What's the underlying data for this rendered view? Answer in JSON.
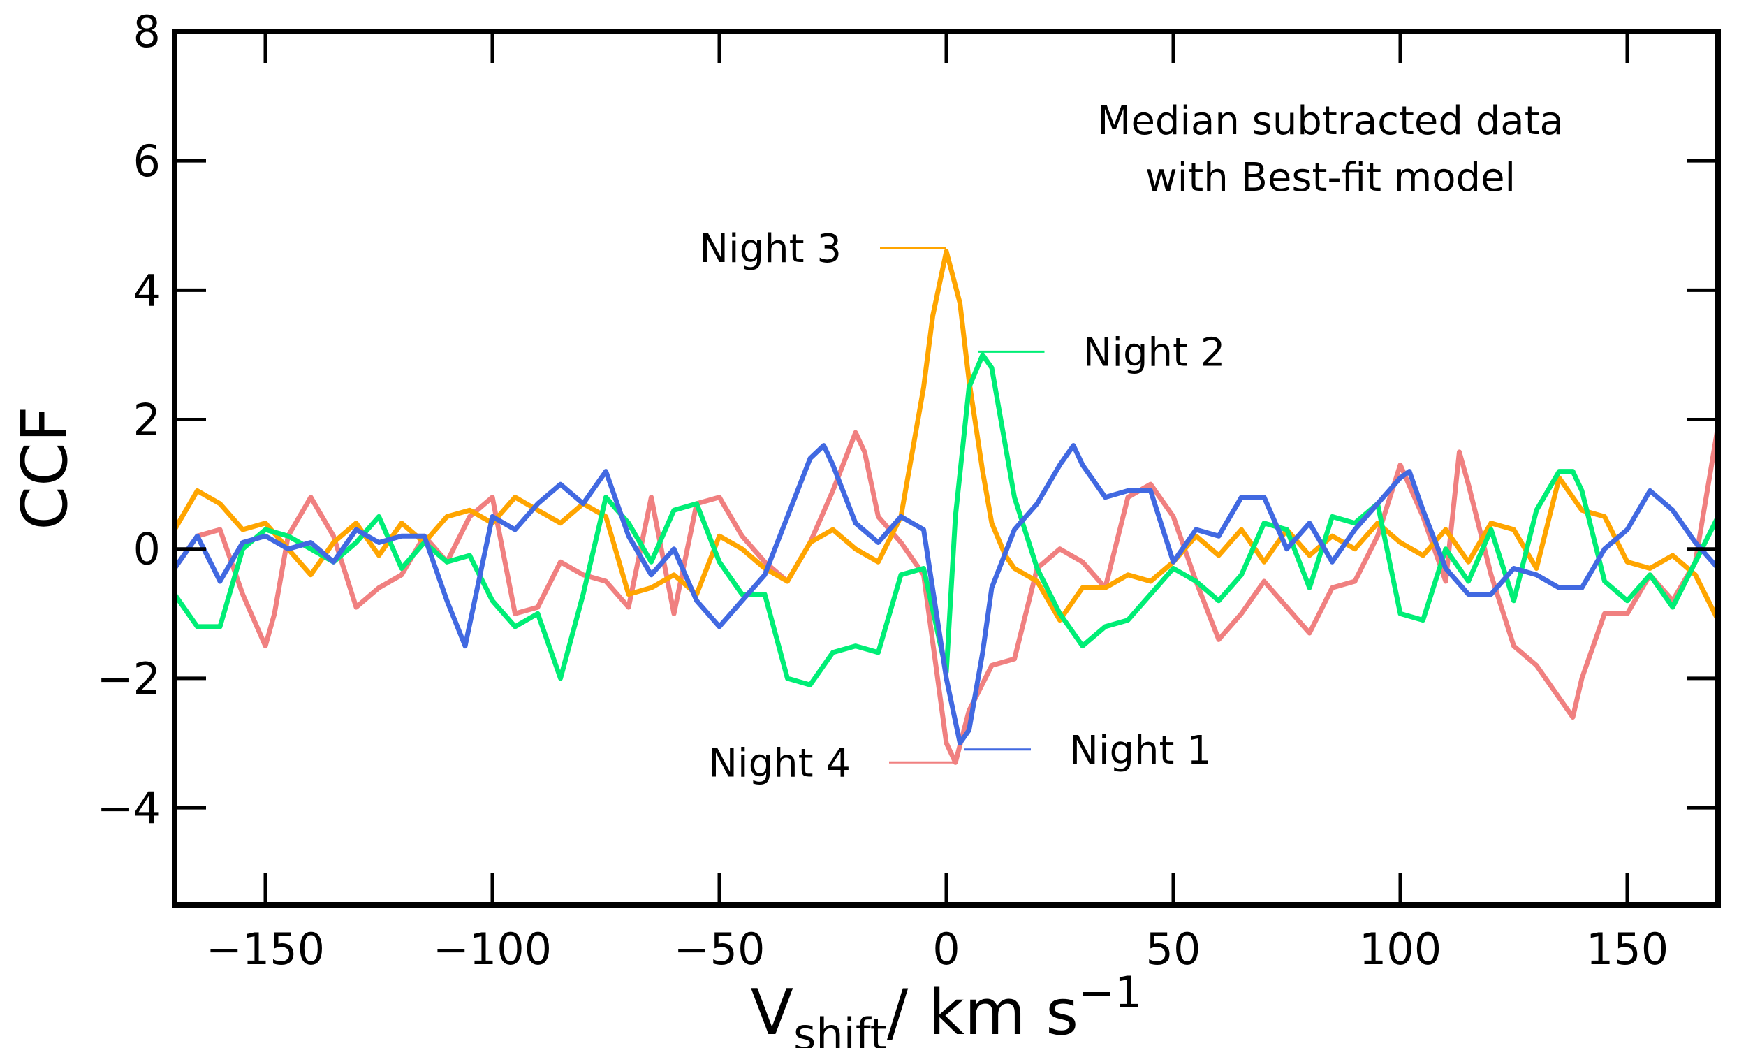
{
  "chart_data": {
    "type": "line",
    "xlabel_main": "V",
    "xlabel_sub": "shift",
    "xlabel_unit": "/ km s",
    "xlabel_sup": "−1",
    "ylabel": "CCF",
    "xlim": [
      -170,
      170
    ],
    "ylim": [
      -5.5,
      8
    ],
    "xticks": [
      -150,
      -100,
      -50,
      0,
      50,
      100,
      150
    ],
    "yticks": [
      -4,
      -2,
      0,
      2,
      4,
      6,
      8
    ],
    "annotation": [
      "Median subtracted data",
      "with Best-fit model"
    ],
    "series": [
      {
        "name": "Night 4",
        "color": "#f08080",
        "x": [
          -170,
          -165,
          -160,
          -155,
          -150,
          -148,
          -145,
          -140,
          -135,
          -130,
          -125,
          -120,
          -115,
          -110,
          -105,
          -100,
          -95,
          -90,
          -85,
          -80,
          -75,
          -70,
          -65,
          -60,
          -55,
          -50,
          -45,
          -40,
          -35,
          -30,
          -25,
          -20,
          -18,
          -15,
          -10,
          -5,
          0,
          2,
          5,
          10,
          15,
          20,
          25,
          30,
          35,
          40,
          45,
          50,
          55,
          60,
          65,
          70,
          75,
          80,
          85,
          90,
          95,
          100,
          105,
          110,
          113,
          115,
          120,
          125,
          130,
          135,
          138,
          140,
          145,
          150,
          155,
          160,
          165,
          170
        ],
        "values": [
          -0.3,
          0.2,
          0.3,
          -0.7,
          -1.5,
          -1.0,
          0.2,
          0.8,
          0.2,
          -0.9,
          -0.6,
          -0.4,
          0.2,
          -0.2,
          0.5,
          0.8,
          -1.0,
          -0.9,
          -0.2,
          -0.4,
          -0.5,
          -0.9,
          0.8,
          -1.0,
          0.7,
          0.8,
          0.2,
          -0.2,
          -0.5,
          0.1,
          0.9,
          1.8,
          1.5,
          0.5,
          0.1,
          -0.4,
          -3.0,
          -3.3,
          -2.5,
          -1.8,
          -1.7,
          -0.3,
          0.0,
          -0.2,
          -0.6,
          0.8,
          1.0,
          0.5,
          -0.5,
          -1.4,
          -1.0,
          -0.5,
          -0.9,
          -1.3,
          -0.6,
          -0.5,
          0.2,
          1.3,
          0.5,
          -0.5,
          1.5,
          1.0,
          -0.4,
          -1.5,
          -1.8,
          -2.3,
          -2.6,
          -2.0,
          -1.0,
          -1.0,
          -0.4,
          -0.8,
          -0.2,
          1.9
        ]
      },
      {
        "name": "Night 3",
        "color": "#ffa500",
        "x": [
          -170,
          -165,
          -160,
          -155,
          -150,
          -145,
          -140,
          -135,
          -130,
          -125,
          -120,
          -115,
          -110,
          -105,
          -100,
          -95,
          -90,
          -85,
          -80,
          -75,
          -70,
          -65,
          -60,
          -55,
          -50,
          -45,
          -40,
          -35,
          -30,
          -25,
          -20,
          -15,
          -10,
          -8,
          -5,
          -3,
          0,
          3,
          5,
          8,
          10,
          13,
          15,
          20,
          25,
          30,
          35,
          40,
          45,
          50,
          55,
          60,
          65,
          70,
          75,
          80,
          85,
          90,
          95,
          100,
          105,
          110,
          115,
          120,
          125,
          130,
          135,
          140,
          145,
          150,
          155,
          160,
          165,
          170
        ],
        "values": [
          0.3,
          0.9,
          0.7,
          0.3,
          0.4,
          0.0,
          -0.4,
          0.1,
          0.4,
          -0.1,
          0.4,
          0.1,
          0.5,
          0.6,
          0.4,
          0.8,
          0.6,
          0.4,
          0.7,
          0.5,
          -0.7,
          -0.6,
          -0.4,
          -0.7,
          0.2,
          0.0,
          -0.3,
          -0.5,
          0.1,
          0.3,
          0.0,
          -0.2,
          0.5,
          1.3,
          2.5,
          3.6,
          4.6,
          3.8,
          2.6,
          1.2,
          0.4,
          -0.1,
          -0.3,
          -0.5,
          -1.1,
          -0.6,
          -0.6,
          -0.4,
          -0.5,
          -0.2,
          0.2,
          -0.1,
          0.3,
          -0.2,
          0.3,
          -0.1,
          0.2,
          0.0,
          0.4,
          0.1,
          -0.1,
          0.3,
          -0.2,
          0.4,
          0.3,
          -0.3,
          1.1,
          0.6,
          0.5,
          -0.2,
          -0.3,
          -0.1,
          -0.4,
          -1.1
        ]
      },
      {
        "name": "Night 2",
        "color": "#00ee76",
        "x": [
          -170,
          -165,
          -160,
          -155,
          -150,
          -145,
          -140,
          -135,
          -130,
          -125,
          -120,
          -115,
          -110,
          -105,
          -100,
          -95,
          -90,
          -85,
          -80,
          -75,
          -70,
          -65,
          -60,
          -55,
          -50,
          -45,
          -40,
          -35,
          -30,
          -25,
          -20,
          -15,
          -10,
          -5,
          0,
          2,
          5,
          8,
          10,
          15,
          20,
          25,
          30,
          35,
          40,
          45,
          50,
          55,
          60,
          65,
          70,
          75,
          80,
          85,
          90,
          95,
          100,
          105,
          110,
          115,
          120,
          125,
          130,
          135,
          138,
          140,
          145,
          150,
          155,
          160,
          165,
          170
        ],
        "values": [
          -0.7,
          -1.2,
          -1.2,
          0.0,
          0.3,
          0.2,
          0.0,
          -0.2,
          0.1,
          0.5,
          -0.3,
          0.1,
          -0.2,
          -0.1,
          -0.8,
          -1.2,
          -1.0,
          -2.0,
          -0.7,
          0.8,
          0.4,
          -0.2,
          0.6,
          0.7,
          -0.2,
          -0.7,
          -0.7,
          -2.0,
          -2.1,
          -1.6,
          -1.5,
          -1.6,
          -0.4,
          -0.3,
          -1.9,
          0.5,
          2.5,
          3.0,
          2.8,
          0.8,
          -0.3,
          -1.0,
          -1.5,
          -1.2,
          -1.1,
          -0.7,
          -0.3,
          -0.5,
          -0.8,
          -0.4,
          0.4,
          0.3,
          -0.6,
          0.5,
          0.4,
          0.7,
          -1.0,
          -1.1,
          0.0,
          -0.5,
          0.3,
          -0.8,
          0.6,
          1.2,
          1.2,
          0.9,
          -0.5,
          -0.8,
          -0.4,
          -0.9,
          -0.2,
          0.5
        ]
      },
      {
        "name": "Night 1",
        "color": "#4169e1",
        "x": [
          -170,
          -165,
          -160,
          -155,
          -150,
          -145,
          -140,
          -135,
          -130,
          -125,
          -120,
          -115,
          -110,
          -106,
          -100,
          -95,
          -90,
          -85,
          -80,
          -75,
          -70,
          -65,
          -60,
          -55,
          -50,
          -45,
          -40,
          -35,
          -30,
          -27,
          -25,
          -20,
          -15,
          -10,
          -5,
          0,
          3,
          5,
          8,
          10,
          15,
          20,
          25,
          28,
          30,
          35,
          40,
          45,
          50,
          55,
          60,
          65,
          70,
          75,
          80,
          85,
          90,
          95,
          100,
          102,
          105,
          110,
          115,
          120,
          125,
          130,
          135,
          140,
          145,
          150,
          155,
          160,
          165,
          170
        ],
        "values": [
          -0.3,
          0.2,
          -0.5,
          0.1,
          0.2,
          0.0,
          0.1,
          -0.2,
          0.3,
          0.1,
          0.2,
          0.2,
          -0.8,
          -1.5,
          0.5,
          0.3,
          0.7,
          1.0,
          0.7,
          1.2,
          0.2,
          -0.4,
          0.0,
          -0.8,
          -1.2,
          -0.8,
          -0.4,
          0.5,
          1.4,
          1.6,
          1.3,
          0.4,
          0.1,
          0.5,
          0.3,
          -2.0,
          -3.0,
          -2.8,
          -1.6,
          -0.6,
          0.3,
          0.7,
          1.3,
          1.6,
          1.3,
          0.8,
          0.9,
          0.9,
          -0.2,
          0.3,
          0.2,
          0.8,
          0.8,
          0.0,
          0.4,
          -0.2,
          0.3,
          0.7,
          1.1,
          1.2,
          0.6,
          -0.3,
          -0.7,
          -0.7,
          -0.3,
          -0.4,
          -0.6,
          -0.6,
          0.0,
          0.3,
          0.9,
          0.6,
          0.1,
          -0.3
        ]
      }
    ],
    "series_labels": [
      {
        "series": "Night 3",
        "text": "Night 3",
        "side": "left",
        "at_x": 0,
        "at_y": 4.65
      },
      {
        "series": "Night 2",
        "text": "Night 2",
        "side": "right",
        "at_x": 7,
        "at_y": 3.05
      },
      {
        "series": "Night 1",
        "text": "Night 1",
        "side": "right",
        "at_x": 4,
        "at_y": -3.1
      },
      {
        "series": "Night 4",
        "text": "Night 4",
        "side": "left",
        "at_x": 2,
        "at_y": -3.3
      }
    ]
  }
}
